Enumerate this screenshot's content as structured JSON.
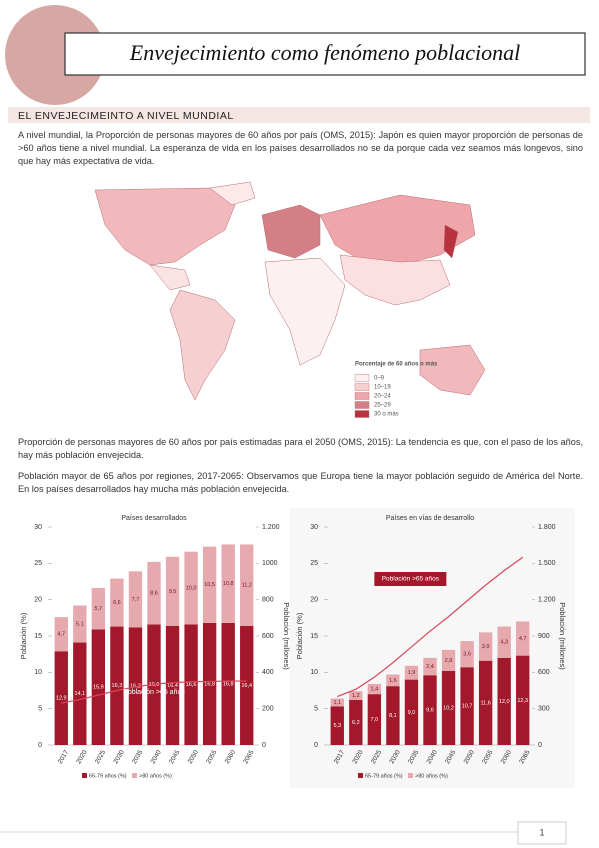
{
  "header": {
    "title": "Envejecimiento como fenómeno poblacional"
  },
  "section": {
    "title": "EL ENVEJECIMEINTO A NIVEL MUNDIAL"
  },
  "paragraphs": [
    "A nivel mundial, la Proporción de personas mayores de 60 años por país (OMS, 2015): Japón es quien mayor proporción de personas de >60 años tiene a nivel mundial. La esperanza de vida en los países desarrollados no se da porque cada vez seamos más longevos, sino que hay más expectativa de vida.",
    "Proporción de personas mayores de 60 años por país estimadas para el 2050 (OMS, 2015): La tendencia es que, con el paso de los años, hay más población envejecida.",
    "Población mayor de 65 años por regiones, 2017-2065: Observamos que Europa tiene la mayor población seguido de América del Norte. En los países desarrollados hay mucha más población envejecida."
  ],
  "map": {
    "legend_title": "Porcentaje de 60 años o más",
    "legend": [
      "0–9",
      "10–19",
      "20–24",
      "25–29",
      "30 o más"
    ]
  },
  "page_number": "1",
  "chart_data": [
    {
      "type": "bar",
      "stacked": true,
      "title": "Países desarrollados",
      "y_label": "Población (%)",
      "y2_label": "Población (millones)",
      "categories": [
        "2017",
        "2020",
        "2025",
        "2030",
        "2035",
        "2040",
        "2045",
        "2050",
        "2055",
        "2060",
        "2065"
      ],
      "series": [
        {
          "name": "65-79 años (%)",
          "color": "#a3182b",
          "values": [
            12.9,
            14.1,
            15.9,
            16.3,
            16.2,
            16.6,
            16.4,
            16.6,
            16.8,
            16.8,
            16.4
          ],
          "value_labels": [
            "12,9",
            "14,1",
            "15,9",
            "16,3",
            "16,2",
            "16,6",
            "16,4",
            "16,6",
            "16,8",
            "16,8",
            "16,4"
          ]
        },
        {
          "name": ">80 años (%)",
          "color": "#e6a9ae",
          "values": [
            4.7,
            5.1,
            5.7,
            6.6,
            7.7,
            8.6,
            9.5,
            10.0,
            10.5,
            10.8,
            11.2
          ],
          "value_labels": [
            "4,7",
            "5,1",
            "5,7",
            "6,6",
            "7,7",
            "8,6",
            "9,5",
            "10,0",
            "10,5",
            "10,8",
            "11,2"
          ]
        },
        {
          "name": "Población >65 años",
          "color": "#d9475b",
          "axis": "y2",
          "values": [
            231,
            250,
            275,
            300,
            320,
            335,
            343,
            348,
            350,
            352,
            352
          ]
        }
      ],
      "ylim": [
        0,
        30
      ],
      "yticks": [
        0,
        5,
        10,
        15,
        20,
        25,
        30
      ],
      "y2lim": [
        0,
        1200
      ],
      "y2ticks": [
        0,
        200,
        400,
        600,
        800,
        1000,
        {
          "value": 1200,
          "label": "1.200"
        }
      ]
    },
    {
      "type": "bar",
      "stacked": true,
      "title": "Países en vías de desarrollo",
      "y_label": "Población (%)",
      "y2_label": "Población (millones)",
      "categories": [
        "2017",
        "2020",
        "2025",
        "2030",
        "2035",
        "2040",
        "2045",
        "2050",
        "2055",
        "2060",
        "2065"
      ],
      "series": [
        {
          "name": "65-79 años (%)",
          "color": "#a3182b",
          "values": [
            5.3,
            6.2,
            7.0,
            8.1,
            9.0,
            9.6,
            10.2,
            10.7,
            11.6,
            12.0,
            12.3
          ],
          "value_labels": [
            "5,3",
            "6,2",
            "7,0",
            "8,1",
            "9,0",
            "9,6",
            "10,2",
            "10,7",
            "11,6",
            "12,0",
            "12,3"
          ]
        },
        {
          "name": ">80 años (%)",
          "color": "#e6a9ae",
          "values": [
            1.1,
            1.2,
            1.4,
            1.6,
            1.9,
            2.4,
            2.9,
            3.6,
            3.9,
            4.3,
            4.7
          ],
          "value_labels": [
            "1,1",
            "1,2",
            "1,4",
            "1,6",
            "1,9",
            "2,4",
            "2,9",
            "3,6",
            "3,9",
            "4,3",
            "4,7"
          ]
        },
        {
          "name": "Población >65 años",
          "color": "#d9475b",
          "axis": "y2",
          "values": [
            400,
            460,
            560,
            680,
            810,
            940,
            1060,
            1190,
            1320,
            1440,
            1550
          ]
        }
      ],
      "ylim": [
        0,
        30
      ],
      "yticks": [
        0,
        5,
        10,
        15,
        20,
        25,
        30
      ],
      "y2lim": [
        0,
        1800
      ],
      "y2ticks": [
        0,
        300,
        600,
        900,
        {
          "value": 1200,
          "label": "1.200"
        },
        {
          "value": 1500,
          "label": "1.500"
        },
        {
          "value": 1800,
          "label": "1.800"
        }
      ]
    }
  ]
}
